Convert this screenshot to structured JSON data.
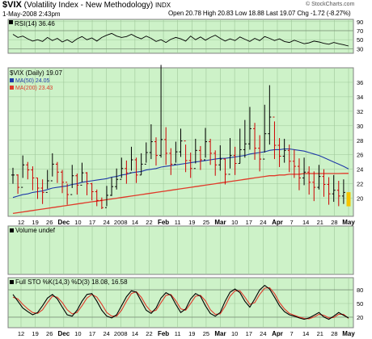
{
  "header": {
    "symbol": "$VIX",
    "name": "(Volatility Index - New Methodology)",
    "exchange": "INDX",
    "date": "1-May-2008 2:43pm",
    "ohlc": "Open 20.78  High 20.83  Low 18.88  Last 19.07  Chg -1.72 (-8.27%)",
    "watermark": "© StockCharts.com"
  },
  "colors": {
    "panel_bg": "#cdf2c8",
    "grid": "#9fc79a",
    "rsi_line": "#000000",
    "ma50": "#1f3aa8",
    "ma200": "#e03a2a",
    "up_bar": "#000000",
    "down_bar": "#cc0000",
    "last_bar": "#f5c400",
    "sto_k": "#000000",
    "sto_d": "#e03a2a"
  },
  "chart_data": [
    {
      "type": "line",
      "panel": "rsi",
      "label": "RSI(14) 36.46",
      "ylim": [
        20,
        95
      ],
      "y_ticks": [
        30,
        50,
        70,
        90
      ],
      "ref_lines": [
        30,
        70
      ],
      "values": [
        62,
        55,
        58,
        52,
        47,
        50,
        46,
        55,
        48,
        53,
        45,
        50,
        44,
        52,
        57,
        50,
        54,
        47,
        55,
        60,
        64,
        58,
        55,
        57,
        62,
        56,
        52,
        58,
        53,
        46,
        50,
        44,
        51,
        55,
        52,
        47,
        58,
        50,
        56,
        49,
        55,
        60,
        53,
        47,
        52,
        48,
        56,
        51,
        46,
        53,
        48,
        57,
        53,
        48,
        52,
        46,
        44,
        49,
        45,
        41,
        43,
        47,
        45,
        42,
        40,
        44,
        41,
        39,
        36
      ]
    },
    {
      "type": "ohlc",
      "panel": "price",
      "title": "$VIX (Daily) 19.07",
      "ma_labels": [
        "MA(50) 24.05",
        "MA(200) 23.43"
      ],
      "ylim": [
        17.5,
        38
      ],
      "y_ticks": [
        20,
        22,
        24,
        26,
        28,
        30,
        32,
        34,
        36
      ],
      "x_ticks": [
        "12",
        "19",
        "26",
        "Dec",
        "10",
        "17",
        "24",
        "2008",
        "14",
        "22",
        "Feb",
        "11",
        "19",
        "25",
        "Mar",
        "10",
        "17",
        "24",
        "Apr",
        "7",
        "14",
        "21",
        "28",
        "May"
      ],
      "close": [
        23.2,
        21.5,
        24.6,
        23.9,
        22.8,
        21.4,
        20.8,
        22.4,
        24.7,
        23.6,
        22.2,
        20.5,
        23.1,
        21.8,
        23.5,
        22.0,
        20.9,
        19.7,
        18.7,
        20.4,
        21.6,
        22.6,
        24.1,
        23.5,
        25.3,
        23.2,
        24.7,
        26.3,
        27.8,
        25.9,
        28.1,
        26.2,
        24.7,
        26.4,
        27.9,
        25.2,
        24.1,
        26.6,
        25.3,
        27.8,
        26.2,
        24.6,
        25.4,
        23.3,
        25.9,
        24.8,
        26.7,
        27.5,
        29.6,
        26.9,
        25.4,
        28.9,
        31.2,
        27.3,
        25.8,
        26.6,
        25.1,
        24.4,
        22.8,
        23.6,
        22.2,
        21.5,
        23.0,
        21.9,
        20.6,
        21.1,
        20.3,
        20.8,
        19.07
      ],
      "high": [
        24.2,
        23.3,
        25.9,
        25.0,
        24.4,
        22.8,
        22.6,
        23.9,
        26.2,
        25.0,
        23.9,
        22.0,
        24.6,
        23.4,
        24.9,
        23.6,
        22.1,
        21.2,
        20.1,
        21.7,
        22.9,
        24.1,
        25.6,
        25.2,
        27.1,
        25.6,
        26.2,
        27.7,
        30.2,
        28.4,
        38.4,
        29.8,
        26.9,
        27.8,
        29.6,
        27.4,
        26.3,
        28.2,
        27.2,
        29.7,
        28.2,
        26.6,
        27.3,
        25.5,
        28.3,
        27.1,
        29.6,
        30.8,
        32.6,
        30.4,
        28.7,
        32.9,
        35.6,
        30.6,
        28.3,
        28.2,
        27.4,
        26.7,
        25.5,
        25.6,
        24.4,
        23.7,
        24.6,
        24.0,
        22.9,
        23.2,
        22.4,
        22.6,
        20.83
      ],
      "low": [
        22.0,
        20.6,
        22.8,
        22.6,
        21.1,
        19.9,
        19.2,
        21.3,
        23.0,
        22.1,
        20.7,
        19.1,
        21.4,
        20.5,
        22.2,
        20.4,
        19.7,
        18.9,
        18.5,
        18.9,
        20.3,
        21.2,
        22.8,
        22.0,
        23.8,
        22.1,
        23.2,
        24.9,
        25.4,
        24.5,
        25.6,
        24.6,
        23.2,
        24.9,
        25.7,
        23.6,
        22.8,
        24.8,
        23.9,
        25.6,
        24.6,
        23.1,
        23.8,
        21.9,
        24.1,
        23.2,
        24.8,
        25.6,
        26.7,
        25.3,
        23.7,
        26.3,
        27.4,
        25.4,
        24.3,
        24.9,
        23.6,
        22.8,
        21.1,
        21.8,
        20.5,
        19.6,
        21.2,
        20.2,
        19.1,
        19.5,
        18.9,
        19.2,
        18.88
      ],
      "ma50": [
        20.1,
        20.3,
        20.5,
        20.6,
        20.8,
        20.9,
        21.0,
        21.2,
        21.4,
        21.5,
        21.6,
        21.7,
        21.9,
        22.0,
        22.2,
        22.3,
        22.4,
        22.5,
        22.6,
        22.7,
        22.9,
        23.0,
        23.2,
        23.3,
        23.5,
        23.6,
        23.7,
        23.9,
        24.0,
        24.1,
        24.3,
        24.4,
        24.5,
        24.6,
        24.7,
        24.8,
        24.9,
        25.0,
        25.1,
        25.2,
        25.3,
        25.4,
        25.5,
        25.5,
        25.6,
        25.7,
        25.8,
        25.9,
        26.1,
        26.2,
        26.3,
        26.4,
        26.6,
        26.7,
        26.7,
        26.8,
        26.8,
        26.7,
        26.6,
        26.5,
        26.3,
        26.1,
        25.9,
        25.6,
        25.3,
        25.0,
        24.7,
        24.4,
        24.05
      ],
      "ma200": [
        17.9,
        18.0,
        18.1,
        18.2,
        18.3,
        18.4,
        18.5,
        18.6,
        18.7,
        18.8,
        18.9,
        19.0,
        19.1,
        19.2,
        19.3,
        19.4,
        19.5,
        19.6,
        19.7,
        19.8,
        19.9,
        20.0,
        20.1,
        20.2,
        20.3,
        20.4,
        20.5,
        20.6,
        20.7,
        20.8,
        20.9,
        21.0,
        21.1,
        21.2,
        21.3,
        21.4,
        21.5,
        21.6,
        21.7,
        21.8,
        21.9,
        22.0,
        22.1,
        22.2,
        22.3,
        22.4,
        22.5,
        22.6,
        22.7,
        22.8,
        22.9,
        23.0,
        23.1,
        23.1,
        23.2,
        23.2,
        23.3,
        23.3,
        23.3,
        23.4,
        23.4,
        23.4,
        23.4,
        23.4,
        23.4,
        23.4,
        23.4,
        23.43,
        23.43
      ]
    },
    {
      "type": "bar",
      "panel": "volume",
      "label": "Volume undef",
      "values": []
    },
    {
      "type": "line",
      "panel": "stochastic",
      "label": "Full STO %K(14,3) %D(3) 18.08, 16.58",
      "ylim": [
        0,
        100
      ],
      "y_ticks": [
        20,
        50,
        80
      ],
      "ref_lines": [
        20,
        80
      ],
      "series": [
        {
          "name": "%K(14,3)",
          "values": [
            70,
            55,
            40,
            32,
            25,
            30,
            45,
            62,
            70,
            60,
            42,
            25,
            22,
            35,
            55,
            70,
            72,
            55,
            35,
            22,
            18,
            25,
            45,
            65,
            78,
            75,
            55,
            35,
            28,
            40,
            62,
            74,
            68,
            48,
            30,
            38,
            60,
            72,
            66,
            45,
            28,
            22,
            30,
            55,
            75,
            82,
            74,
            55,
            42,
            60,
            80,
            90,
            82,
            64,
            45,
            32,
            25,
            22,
            18,
            15,
            18,
            24,
            30,
            20,
            15,
            22,
            30,
            24,
            18
          ]
        },
        {
          "name": "%D(3)",
          "values": [
            64,
            60,
            48,
            38,
            30,
            28,
            36,
            52,
            66,
            64,
            52,
            36,
            27,
            30,
            45,
            62,
            70,
            64,
            48,
            30,
            22,
            22,
            35,
            55,
            72,
            76,
            64,
            45,
            32,
            35,
            52,
            68,
            70,
            56,
            38,
            35,
            50,
            66,
            68,
            56,
            36,
            26,
            27,
            44,
            66,
            78,
            78,
            64,
            48,
            52,
            70,
            84,
            85,
            72,
            52,
            38,
            28,
            24,
            20,
            17,
            16,
            20,
            26,
            24,
            18,
            19,
            26,
            26,
            17
          ]
        }
      ]
    }
  ]
}
